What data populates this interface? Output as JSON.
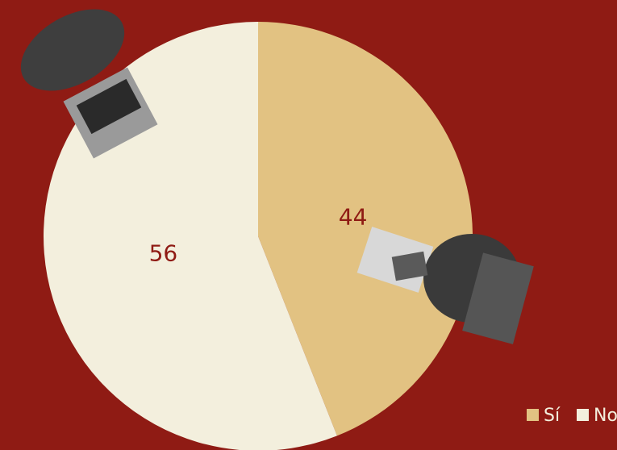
{
  "chart_data": {
    "type": "pie",
    "categories": [
      "Sí",
      "No"
    ],
    "values": [
      44,
      56
    ],
    "colors": [
      "#e2c282",
      "#f3efdd"
    ],
    "legend": "bottom-right"
  }
}
